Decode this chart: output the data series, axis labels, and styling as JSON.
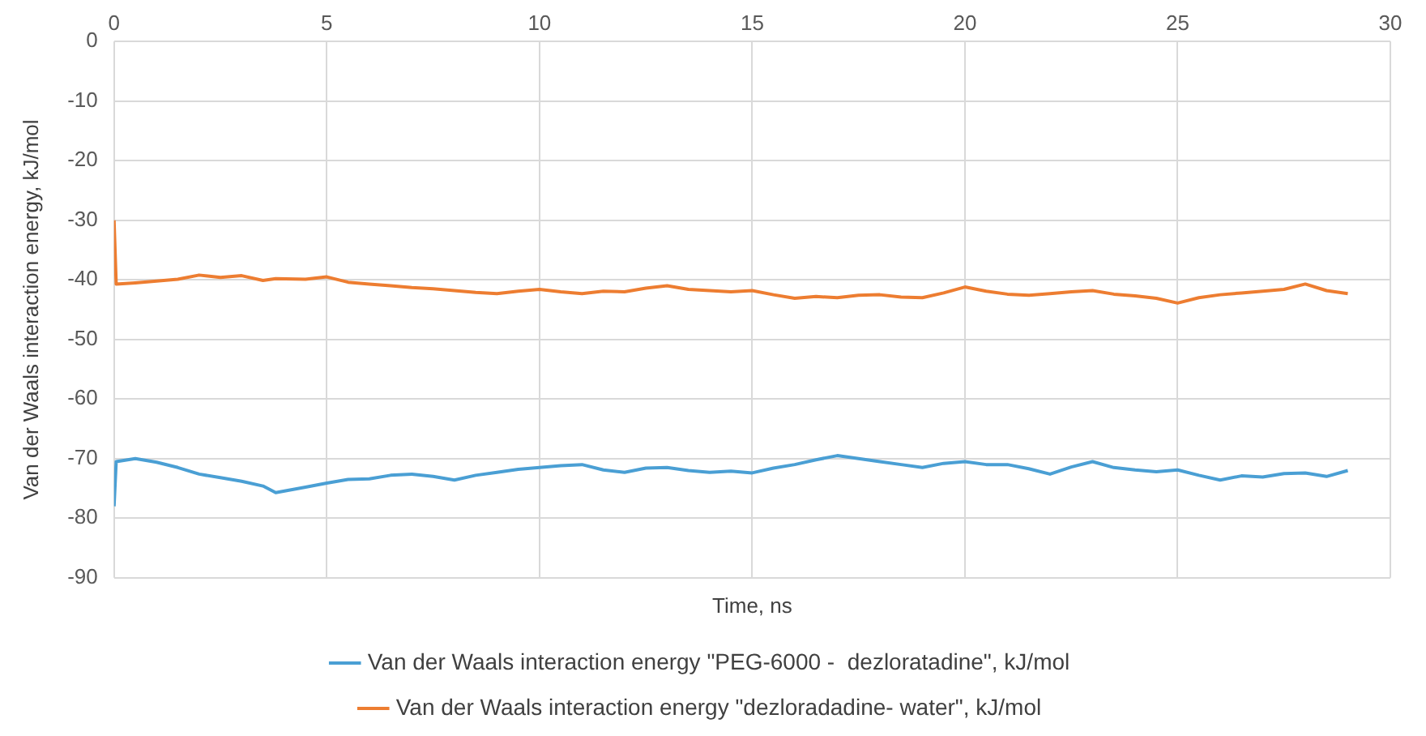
{
  "chart_data": {
    "type": "line",
    "xlabel": "Time, ns",
    "ylabel": "Van der Waals interaction energy, kJ/mol",
    "xlim": [
      0,
      30
    ],
    "xticks": [
      0,
      5,
      10,
      15,
      20,
      25,
      30
    ],
    "ylim": [
      -90,
      0
    ],
    "yticks": [
      0,
      -10,
      -20,
      -30,
      -40,
      -50,
      -60,
      -70,
      -80,
      -90
    ],
    "grid": true,
    "legend": "bottom",
    "marker": "none",
    "line_style": "solid",
    "x": [
      0,
      0.05,
      0.5,
      1,
      1.5,
      2,
      2.5,
      3,
      3.5,
      3.8,
      4.5,
      5,
      5.5,
      6,
      6.5,
      7,
      7.5,
      8,
      8.5,
      9,
      9.5,
      10,
      10.5,
      11,
      11.5,
      12,
      12.5,
      13,
      13.5,
      14,
      14.5,
      15,
      15.5,
      16,
      16.5,
      17,
      17.5,
      18,
      18.5,
      19,
      19.5,
      20,
      20.5,
      21,
      21.5,
      22,
      22.5,
      23,
      23.5,
      24,
      24.5,
      25,
      25.5,
      26,
      26.5,
      27,
      27.5,
      28,
      28.5,
      29
    ],
    "series": [
      {
        "name": "Van der Waals interaction energy \"PEG-6000 -  dezloratadine\", kJ/mol",
        "color": "#4a9fd4",
        "values": [
          -78,
          -70.5,
          -70,
          -70.6,
          -71.5,
          -72.6,
          -73.2,
          -73.8,
          -74.6,
          -75.7,
          -74.8,
          -74.1,
          -73.5,
          -73.4,
          -72.8,
          -72.6,
          -73,
          -73.6,
          -72.8,
          -72.3,
          -71.8,
          -71.5,
          -71.2,
          -71,
          -71.9,
          -72.3,
          -71.6,
          -71.5,
          -72,
          -72.3,
          -72.1,
          -72.4,
          -71.6,
          -71,
          -70.2,
          -69.5,
          -70,
          -70.5,
          -71,
          -71.5,
          -70.8,
          -70.5,
          -71,
          -71,
          -71.7,
          -72.6,
          -71.4,
          -70.5,
          -71.5,
          -71.9,
          -72.2,
          -71.9,
          -72.8,
          -73.6,
          -72.9,
          -73.1,
          -72.5,
          -72.4,
          -73,
          -72
        ]
      },
      {
        "name": "Van der Waals interaction energy \"dezloradadine- water\", kJ/mol",
        "color": "#ed7d31",
        "values": [
          -30,
          -40.7,
          -40.5,
          -40.2,
          -39.9,
          -39.2,
          -39.6,
          -39.3,
          -40.1,
          -39.8,
          -39.9,
          -39.5,
          -40.4,
          -40.7,
          -41,
          -41.3,
          -41.5,
          -41.8,
          -42.1,
          -42.3,
          -41.9,
          -41.6,
          -42,
          -42.3,
          -41.9,
          -42,
          -41.4,
          -41,
          -41.6,
          -41.8,
          -42,
          -41.8,
          -42.5,
          -43.1,
          -42.8,
          -43,
          -42.6,
          -42.5,
          -42.9,
          -43,
          -42.2,
          -41.2,
          -41.9,
          -42.4,
          -42.6,
          -42.3,
          -42,
          -41.8,
          -42.4,
          -42.7,
          -43.1,
          -43.9,
          -43,
          -42.5,
          -42.2,
          -41.9,
          -41.6,
          -40.7,
          -41.8,
          -42.3
        ]
      }
    ]
  }
}
